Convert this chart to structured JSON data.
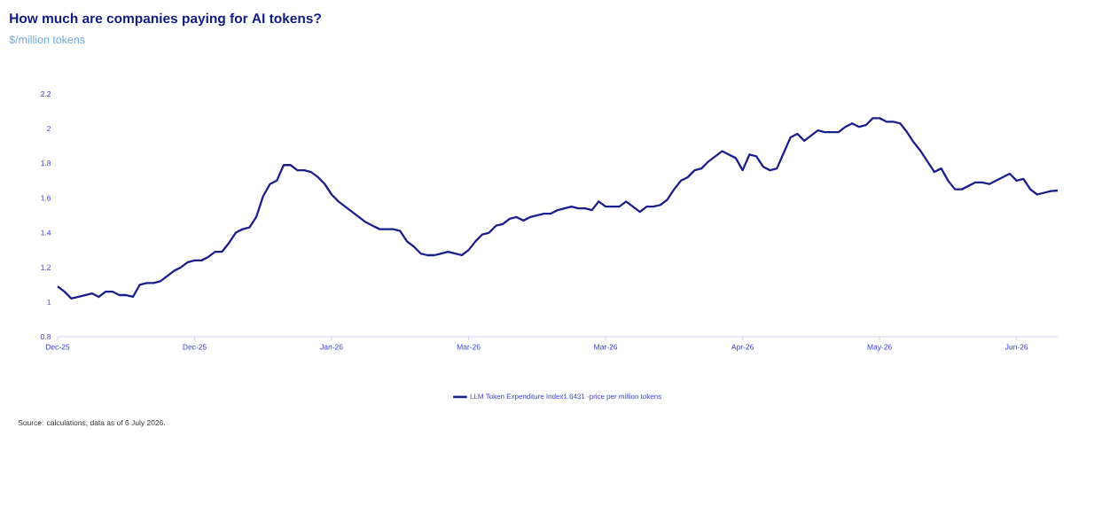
{
  "chart_data": {
    "type": "line",
    "title": "How much are companies paying for AI tokens?",
    "subtitle": "$/million tokens",
    "annotations": [
      "Source: calculations, data as of 6 July 2026."
    ],
    "categories": [
      "Dec-25",
      null,
      null,
      null,
      null,
      null,
      null,
      null,
      null,
      null,
      null,
      null,
      null,
      null,
      null,
      null,
      null,
      null,
      null,
      null,
      "Dec-25",
      null,
      null,
      null,
      null,
      null,
      null,
      null,
      null,
      null,
      null,
      null,
      null,
      null,
      null,
      null,
      null,
      null,
      null,
      null,
      "Jan-26",
      null,
      null,
      null,
      null,
      null,
      null,
      null,
      null,
      null,
      null,
      null,
      null,
      null,
      null,
      null,
      null,
      null,
      null,
      null,
      "Mar-26",
      null,
      null,
      null,
      null,
      null,
      null,
      null,
      null,
      null,
      null,
      null,
      null,
      null,
      null,
      null,
      null,
      null,
      null,
      null,
      "Mar-26",
      null,
      null,
      null,
      null,
      null,
      null,
      null,
      null,
      null,
      null,
      null,
      null,
      null,
      null,
      null,
      null,
      null,
      null,
      null,
      "Apr-26",
      null,
      null,
      null,
      null,
      null,
      null,
      null,
      null,
      null,
      null,
      null,
      null,
      null,
      null,
      null,
      null,
      null,
      null,
      null,
      "May-26",
      null,
      null,
      null,
      null,
      null,
      null,
      null,
      null,
      null,
      null,
      null,
      null,
      null,
      null,
      null,
      null,
      null,
      null,
      null,
      "Jun-26",
      null,
      null,
      null,
      null,
      null,
      null
    ],
    "series": [
      {
        "name": "LLM Token Expenditure Index1.6431 -price per million tokens",
        "color": "#1a1f8c",
        "values": [
          1.09,
          1.06,
          1.02,
          1.03,
          1.04,
          1.05,
          1.03,
          1.06,
          1.06,
          1.04,
          1.04,
          1.03,
          1.1,
          1.11,
          1.11,
          1.12,
          1.15,
          1.18,
          1.2,
          1.23,
          1.24,
          1.24,
          1.26,
          1.29,
          1.29,
          1.34,
          1.4,
          1.42,
          1.43,
          1.49,
          1.61,
          1.68,
          1.7,
          1.79,
          1.79,
          1.76,
          1.76,
          1.75,
          1.72,
          1.68,
          1.62,
          1.58,
          1.55,
          1.52,
          1.49,
          1.46,
          1.44,
          1.42,
          1.42,
          1.42,
          1.41,
          1.35,
          1.32,
          1.28,
          1.27,
          1.27,
          1.28,
          1.29,
          1.28,
          1.27,
          1.3,
          1.35,
          1.39,
          1.4,
          1.44,
          1.45,
          1.48,
          1.49,
          1.47,
          1.49,
          1.5,
          1.51,
          1.51,
          1.53,
          1.54,
          1.55,
          1.54,
          1.54,
          1.53,
          1.58,
          1.55,
          1.55,
          1.55,
          1.58,
          1.55,
          1.52,
          1.55,
          1.55,
          1.56,
          1.59,
          1.65,
          1.7,
          1.72,
          1.76,
          1.77,
          1.81,
          1.84,
          1.87,
          1.85,
          1.83,
          1.76,
          1.85,
          1.84,
          1.78,
          1.76,
          1.77,
          1.86,
          1.95,
          1.97,
          1.93,
          1.96,
          1.99,
          1.98,
          1.98,
          1.98,
          2.01,
          2.03,
          2.01,
          2.02,
          2.06,
          2.06,
          2.04,
          2.04,
          2.03,
          1.98,
          1.92,
          1.87,
          1.81,
          1.75,
          1.77,
          1.7,
          1.65,
          1.65,
          1.67,
          1.69,
          1.69,
          1.68,
          1.7,
          1.72,
          1.74,
          1.7,
          1.71,
          1.65,
          1.62,
          1.63,
          1.64,
          1.643
        ]
      }
    ],
    "ylim": [
      0.8,
      2.2
    ],
    "yticks": [
      0.8,
      1,
      1.2,
      1.4,
      1.6,
      1.8,
      2,
      2.2
    ],
    "legend": "bottom",
    "marker": "none",
    "line_style": "solid"
  }
}
